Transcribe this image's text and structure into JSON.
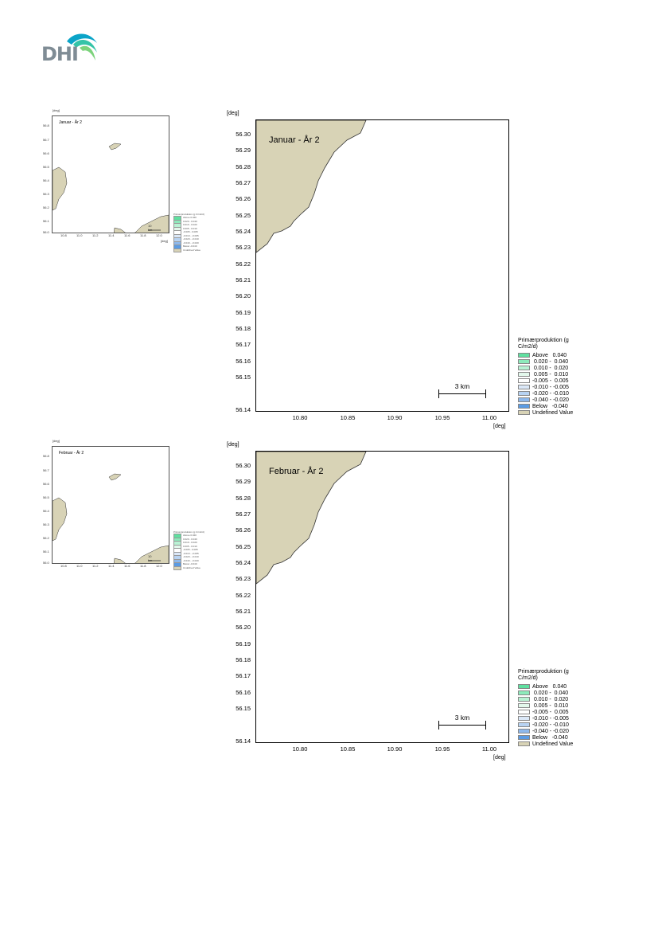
{
  "logo": {
    "text": "DHI"
  },
  "maps": [
    {
      "id": "januar",
      "title": "Januar - År 2",
      "mini_title": "Januar - År 2",
      "yunit": "[deg]",
      "xunit": "[deg]",
      "yticks": [
        "56.30",
        "56.29",
        "56.28",
        "56.27",
        "56.26",
        "56.25",
        "56.24",
        "56.23",
        "56.22",
        "56.21",
        "56.20",
        "56.19",
        "56.18",
        "56.17",
        "56.16",
        "56.15",
        "56.14"
      ],
      "xticks": [
        "10.80",
        "10.85",
        "10.90",
        "10.95",
        "11.00"
      ],
      "scalebar": "3 km",
      "legend_title": "Primærproduktion (g C/m2/d)"
    },
    {
      "id": "februar",
      "title": "Februar - År 2",
      "mini_title": "Februar - År 2",
      "yunit": "[deg]",
      "xunit": "[deg]",
      "yticks": [
        "56.30",
        "56.29",
        "56.28",
        "56.27",
        "56.26",
        "56.25",
        "56.24",
        "56.23",
        "56.22",
        "56.21",
        "56.20",
        "56.19",
        "56.18",
        "56.17",
        "56.16",
        "56.15",
        "56.14"
      ],
      "xticks": [
        "10.80",
        "10.85",
        "10.90",
        "10.95",
        "11.00"
      ],
      "scalebar": "3 km",
      "legend_title": "Primærproduktion (g C/m2/d)"
    }
  ],
  "mini_axis": {
    "yticks": [
      "56.8",
      "56.7",
      "56.6",
      "56.5",
      "56.4",
      "56.3",
      "56.2",
      "56.1",
      "56.0"
    ],
    "xticks": [
      "10.8",
      "11.0",
      "11.2",
      "11.4",
      "11.6",
      "11.8",
      "12.0"
    ],
    "unit": "[deg]",
    "scalebar": "10 km"
  },
  "legend": [
    {
      "label": "Above   0.040",
      "color": "#5fe0a0"
    },
    {
      "label": " 0.020 -  0.040",
      "color": "#8deabb"
    },
    {
      "label": " 0.010 -  0.020",
      "color": "#b9f2d4"
    },
    {
      "label": " 0.005 -  0.010",
      "color": "#e3f8ec"
    },
    {
      "label": "-0.005 -  0.005",
      "color": "#ffffff"
    },
    {
      "label": "-0.010 - -0.005",
      "color": "#dbe8f8"
    },
    {
      "label": "-0.020 - -0.010",
      "color": "#b8d3f2"
    },
    {
      "label": "-0.040 - -0.020",
      "color": "#8db8ec"
    },
    {
      "label": "Below   -0.040",
      "color": "#5a9be4"
    },
    {
      "label": "Undefined Value",
      "color": "#d8d3b6"
    }
  ],
  "colors": {
    "land": "#d8d3b6",
    "coast": "#333333"
  }
}
